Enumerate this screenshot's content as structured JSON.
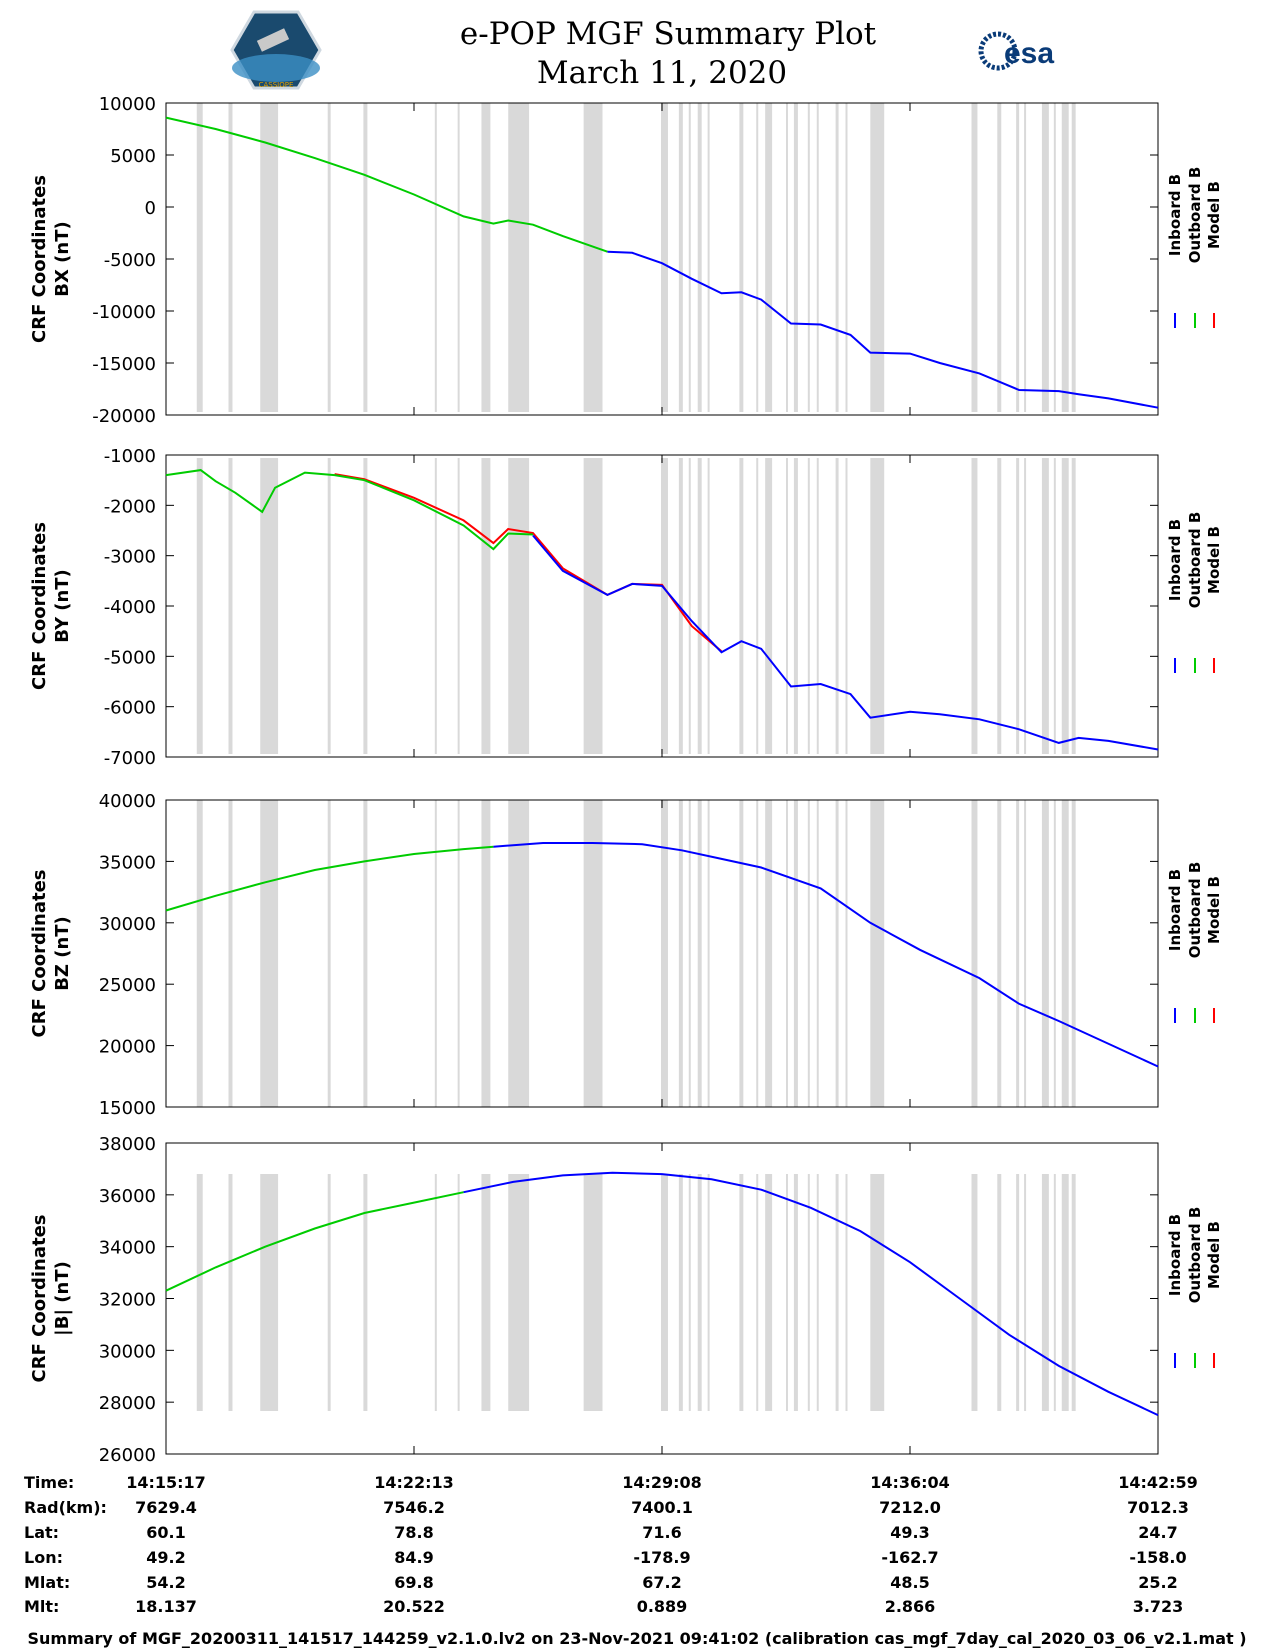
{
  "header": {
    "title_line1": "e-POP MGF Summary Plot",
    "title_line2": "March 11, 2020",
    "left_logo_text": "CASSIOPE",
    "right_logo_text": "esa",
    "colors": {
      "esa": "#0a3b78"
    }
  },
  "legend": {
    "labels": [
      "Inboard B",
      "Outboard B",
      "Model B"
    ],
    "colors": [
      "#0000ff",
      "#00cc00",
      "#ff0000"
    ]
  },
  "chart_data": [
    {
      "type": "line",
      "ylabel_line1": "CRF Coordinates",
      "ylabel_line2": "BX (nT)",
      "ylim": [
        -20000,
        10000
      ],
      "yticks": [
        10000,
        5000,
        0,
        -5000,
        -10000,
        -15000,
        -20000
      ],
      "ytick_labels": [
        "10000",
        "5000",
        "0",
        "-5000",
        "-10000",
        "-15000",
        "-20000"
      ],
      "series": [
        {
          "name": "Outboard B",
          "color": "#00cc00",
          "x": [
            0,
            0.05,
            0.1,
            0.15,
            0.2,
            0.25,
            0.3,
            0.33,
            0.345,
            0.37,
            0.4,
            0.445
          ],
          "values": [
            8600,
            7500,
            6200,
            4700,
            3100,
            1200,
            -900,
            -1600,
            -1300,
            -1700,
            -2800,
            -4300
          ]
        },
        {
          "name": "Inboard B",
          "color": "#0000ff",
          "x": [
            0.445,
            0.47,
            0.5,
            0.53,
            0.56,
            0.58,
            0.6,
            0.63,
            0.66,
            0.69,
            0.71,
            0.75,
            0.78,
            0.82,
            0.86,
            0.9,
            0.92,
            0.95,
            1.0
          ],
          "values": [
            -4300,
            -4400,
            -5400,
            -6900,
            -8300,
            -8200,
            -8900,
            -11200,
            -11300,
            -12300,
            -14000,
            -14100,
            -15000,
            -16000,
            -17600,
            -17700,
            -18000,
            -18400,
            -19300
          ]
        },
        {
          "name": "Model B",
          "color": "#ff0000",
          "x": [],
          "values": []
        }
      ]
    },
    {
      "type": "line",
      "ylabel_line1": "CRF Coordinates",
      "ylabel_line2": "BY (nT)",
      "ylim": [
        -7000,
        -1000
      ],
      "yticks": [
        -1000,
        -2000,
        -3000,
        -4000,
        -5000,
        -6000,
        -7000
      ],
      "ytick_labels": [
        "-1000",
        "-2000",
        "-3000",
        "-4000",
        "-5000",
        "-6000",
        "-7000"
      ],
      "series": [
        {
          "name": "Model B",
          "color": "#ff0000",
          "x": [
            0.17,
            0.2,
            0.25,
            0.3,
            0.33,
            0.345,
            0.37,
            0.4,
            0.445,
            0.47,
            0.5,
            0.53,
            0.56
          ],
          "values": [
            -1380,
            -1480,
            -1850,
            -2300,
            -2750,
            -2470,
            -2550,
            -3250,
            -3780,
            -3560,
            -3580,
            -4400,
            -4900
          ]
        },
        {
          "name": "Outboard B",
          "color": "#00cc00",
          "x": [
            0,
            0.035,
            0.05,
            0.07,
            0.097,
            0.11,
            0.14,
            0.17,
            0.2,
            0.25,
            0.3,
            0.33,
            0.345,
            0.37
          ],
          "values": [
            -1400,
            -1300,
            -1520,
            -1750,
            -2130,
            -1650,
            -1350,
            -1400,
            -1500,
            -1900,
            -2400,
            -2870,
            -2560,
            -2580
          ]
        },
        {
          "name": "Inboard B",
          "color": "#0000ff",
          "x": [
            0.37,
            0.4,
            0.445,
            0.47,
            0.5,
            0.53,
            0.56,
            0.58,
            0.6,
            0.63,
            0.66,
            0.69,
            0.71,
            0.75,
            0.78,
            0.82,
            0.86,
            0.9,
            0.92,
            0.95,
            1.0
          ],
          "values": [
            -2600,
            -3300,
            -3780,
            -3560,
            -3600,
            -4300,
            -4920,
            -4700,
            -4850,
            -5600,
            -5550,
            -5750,
            -6220,
            -6100,
            -6150,
            -6250,
            -6450,
            -6720,
            -6620,
            -6680,
            -6850
          ]
        }
      ]
    },
    {
      "type": "line",
      "ylabel_line1": "CRF Coordinates",
      "ylabel_line2": "BZ (nT)",
      "ylim": [
        15000,
        40000
      ],
      "yticks": [
        40000,
        35000,
        30000,
        25000,
        20000,
        15000
      ],
      "ytick_labels": [
        "40000",
        "35000",
        "30000",
        "25000",
        "20000",
        "15000"
      ],
      "series": [
        {
          "name": "Outboard B",
          "color": "#00cc00",
          "x": [
            0,
            0.05,
            0.1,
            0.15,
            0.2,
            0.25,
            0.3,
            0.33
          ],
          "values": [
            31000,
            32200,
            33300,
            34300,
            35000,
            35600,
            36000,
            36200
          ]
        },
        {
          "name": "Inboard B",
          "color": "#0000ff",
          "x": [
            0.33,
            0.38,
            0.43,
            0.48,
            0.52,
            0.56,
            0.6,
            0.66,
            0.71,
            0.76,
            0.82,
            0.86,
            0.9,
            1.0
          ],
          "values": [
            36200,
            36500,
            36500,
            36400,
            35900,
            35200,
            34500,
            32800,
            30000,
            27800,
            25500,
            23400,
            22000,
            18300
          ]
        },
        {
          "name": "Model B",
          "color": "#ff0000",
          "x": [],
          "values": []
        }
      ]
    },
    {
      "type": "line",
      "ylabel_line1": "CRF Coordinates",
      "ylabel_line2": "|B| (nT)",
      "ylim": [
        26000,
        38000
      ],
      "yticks": [
        38000,
        36000,
        34000,
        32000,
        30000,
        28000,
        26000
      ],
      "ytick_labels": [
        "38000",
        "36000",
        "34000",
        "32000",
        "30000",
        "28000",
        "26000"
      ],
      "series": [
        {
          "name": "Outboard B",
          "color": "#00cc00",
          "x": [
            0,
            0.05,
            0.1,
            0.15,
            0.2,
            0.25,
            0.3
          ],
          "values": [
            32300,
            33200,
            34000,
            34700,
            35300,
            35700,
            36100
          ]
        },
        {
          "name": "Inboard B",
          "color": "#0000ff",
          "x": [
            0.3,
            0.35,
            0.4,
            0.45,
            0.5,
            0.55,
            0.6,
            0.65,
            0.7,
            0.75,
            0.8,
            0.85,
            0.9,
            0.95,
            1.0
          ],
          "values": [
            36100,
            36500,
            36750,
            36850,
            36800,
            36600,
            36200,
            35500,
            34600,
            33400,
            32000,
            30600,
            29400,
            28400,
            27500
          ]
        },
        {
          "name": "Model B",
          "color": "#ff0000",
          "x": [],
          "values": []
        }
      ]
    }
  ],
  "gaps": [
    [
      0.031,
      0.037
    ],
    [
      0.063,
      0.067
    ],
    [
      0.095,
      0.113
    ],
    [
      0.163,
      0.166
    ],
    [
      0.199,
      0.203
    ],
    [
      0.271,
      0.273
    ],
    [
      0.294,
      0.296
    ],
    [
      0.318,
      0.327
    ],
    [
      0.345,
      0.366
    ],
    [
      0.421,
      0.44
    ],
    [
      0.499,
      0.506
    ],
    [
      0.517,
      0.521
    ],
    [
      0.527,
      0.529
    ],
    [
      0.536,
      0.54
    ],
    [
      0.546,
      0.548
    ],
    [
      0.578,
      0.582
    ],
    [
      0.595,
      0.597
    ],
    [
      0.604,
      0.611
    ],
    [
      0.625,
      0.627
    ],
    [
      0.633,
      0.637
    ],
    [
      0.647,
      0.649
    ],
    [
      0.656,
      0.658
    ],
    [
      0.675,
      0.678
    ],
    [
      0.685,
      0.687
    ],
    [
      0.71,
      0.724
    ],
    [
      0.812,
      0.818
    ],
    [
      0.838,
      0.842
    ],
    [
      0.857,
      0.86
    ],
    [
      0.865,
      0.867
    ],
    [
      0.883,
      0.89
    ],
    [
      0.895,
      0.897
    ],
    [
      0.903,
      0.91
    ],
    [
      0.913,
      0.917
    ]
  ],
  "xticks": [
    0,
    0.25,
    0.5,
    0.75,
    1.0
  ],
  "ephemeris": {
    "labels": [
      "Time:",
      "Rad(km):",
      "Lat:",
      "Lon:",
      "Mlat:",
      "Mlt:"
    ],
    "columns": [
      [
        "14:15:17",
        "7629.4",
        "60.1",
        "49.2",
        "54.2",
        "18.137"
      ],
      [
        "14:22:13",
        "7546.2",
        "78.8",
        "84.9",
        "69.8",
        "20.522"
      ],
      [
        "14:29:08",
        "7400.1",
        "71.6",
        "-178.9",
        "67.2",
        "0.889"
      ],
      [
        "14:36:04",
        "7212.0",
        "49.3",
        "-162.7",
        "48.5",
        "2.866"
      ],
      [
        "14:42:59",
        "7012.3",
        "24.7",
        "-158.0",
        "25.2",
        "3.723"
      ]
    ]
  },
  "footer": "Summary of MGF_20200311_141517_144259_v2.1.0.lv2 on 23-Nov-2021 09:41:02 (calibration cas_mgf_7day_cal_2020_03_06_v2.1.mat )"
}
